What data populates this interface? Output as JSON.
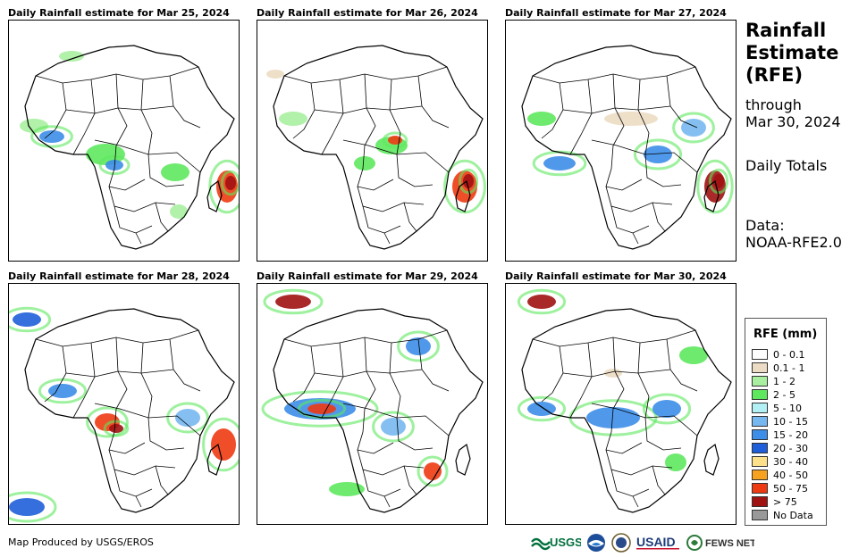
{
  "panels": [
    {
      "title": "Daily Rainfall estimate for Mar 25, 2024"
    },
    {
      "title": "Daily Rainfall estimate for Mar 26, 2024"
    },
    {
      "title": "Daily Rainfall estimate for Mar 27, 2024"
    },
    {
      "title": "Daily Rainfall estimate for Mar 28, 2024"
    },
    {
      "title": "Daily Rainfall estimate for Mar 29, 2024"
    },
    {
      "title": "Daily Rainfall estimate for Mar 30, 2024"
    }
  ],
  "sidebar": {
    "title_line1": "Rainfall",
    "title_line2": "Estimate",
    "title_line3": "(RFE)",
    "through_label": "through",
    "through_date": "Mar 30, 2024",
    "totals_label": "Daily Totals",
    "data_label": "Data:",
    "data_source": "NOAA-RFE2.0"
  },
  "legend": {
    "title": "RFE (mm)",
    "items": [
      {
        "label": "0 - 0.1",
        "color": "#ffffff"
      },
      {
        "label": "0.1 - 1",
        "color": "#ecdcc3"
      },
      {
        "label": "1 - 2",
        "color": "#a8f0a0"
      },
      {
        "label": "2 - 5",
        "color": "#5ee85e"
      },
      {
        "label": "5 - 10",
        "color": "#b3f0f5"
      },
      {
        "label": "10 - 15",
        "color": "#78b8f0"
      },
      {
        "label": "15 - 20",
        "color": "#3d8ee8"
      },
      {
        "label": "20 - 30",
        "color": "#1f5ed9"
      },
      {
        "label": "30 - 40",
        "color": "#fde08a"
      },
      {
        "label": "40 - 50",
        "color": "#f7a21e"
      },
      {
        "label": "50 - 75",
        "color": "#ee3a12"
      },
      {
        "label": "> 75",
        "color": "#a01212"
      },
      {
        "label": "No Data",
        "color": "#999999"
      }
    ]
  },
  "footer": {
    "credit": "Map Produced by USGS/EROS",
    "logo_usgs": "USGS",
    "logo_usaid": "USAID",
    "logo_fewsnet": "FEWS NET"
  }
}
